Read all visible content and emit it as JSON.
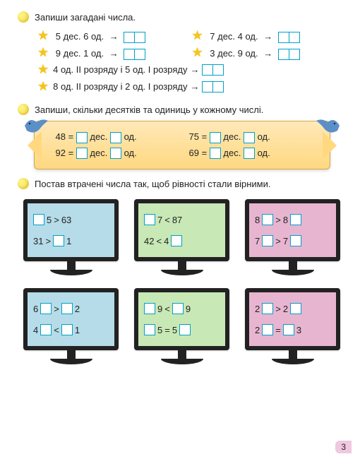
{
  "task1": {
    "title": "Запиши загадані числа.",
    "rows": [
      {
        "left": "5 дес. 6 од.",
        "right": "7 дес. 4 од."
      },
      {
        "left": "9 дес. 1 од.",
        "right": "3 дес. 9 од."
      }
    ],
    "long_rows": [
      "4 од. ІІ розряду і 5 од. І розряду",
      "8 од. ІІ розряду і 2 од. І розряду"
    ]
  },
  "task2": {
    "title": "Запиши, скільки десятків та одиниць у кожному числі.",
    "cells": [
      {
        "n": "48",
        "d": "дес.",
        "o": "од."
      },
      {
        "n": "75",
        "d": "дес.",
        "o": "од."
      },
      {
        "n": "92",
        "d": "дес.",
        "o": "од."
      },
      {
        "n": "69",
        "d": "дес.",
        "o": "од."
      }
    ]
  },
  "task3": {
    "title": "Постав втрачені числа так, щоб рівності стали вірними.",
    "monitors": [
      {
        "color": "blue",
        "r1": [
          "",
          "5",
          " > ",
          "63"
        ],
        "r2": [
          "31",
          " > ",
          "",
          "1"
        ]
      },
      {
        "color": "green",
        "r1": [
          "",
          "7",
          " < ",
          "87"
        ],
        "r2": [
          "42",
          " < ",
          "4",
          ""
        ]
      },
      {
        "color": "pink",
        "r1": [
          "8",
          "",
          " > ",
          "8",
          ""
        ],
        "r2": [
          "7",
          "",
          " > ",
          "7",
          ""
        ]
      },
      {
        "color": "blue",
        "r1": [
          "6",
          "",
          " > ",
          "",
          "2"
        ],
        "r2": [
          "4",
          "",
          " < ",
          "",
          "1"
        ]
      },
      {
        "color": "green",
        "r1": [
          "",
          "9",
          " < ",
          "",
          "9"
        ],
        "r2": [
          "",
          "5",
          " = ",
          "5",
          ""
        ]
      },
      {
        "color": "pink",
        "r1": [
          "2",
          "",
          " > ",
          "2",
          ""
        ],
        "r2": [
          "2",
          "",
          " = ",
          "",
          "3"
        ]
      }
    ]
  },
  "pagenum": "3",
  "colors": {
    "box_border": "#00a0c8",
    "bullet": "#f5d742",
    "star": "#f5c518"
  }
}
